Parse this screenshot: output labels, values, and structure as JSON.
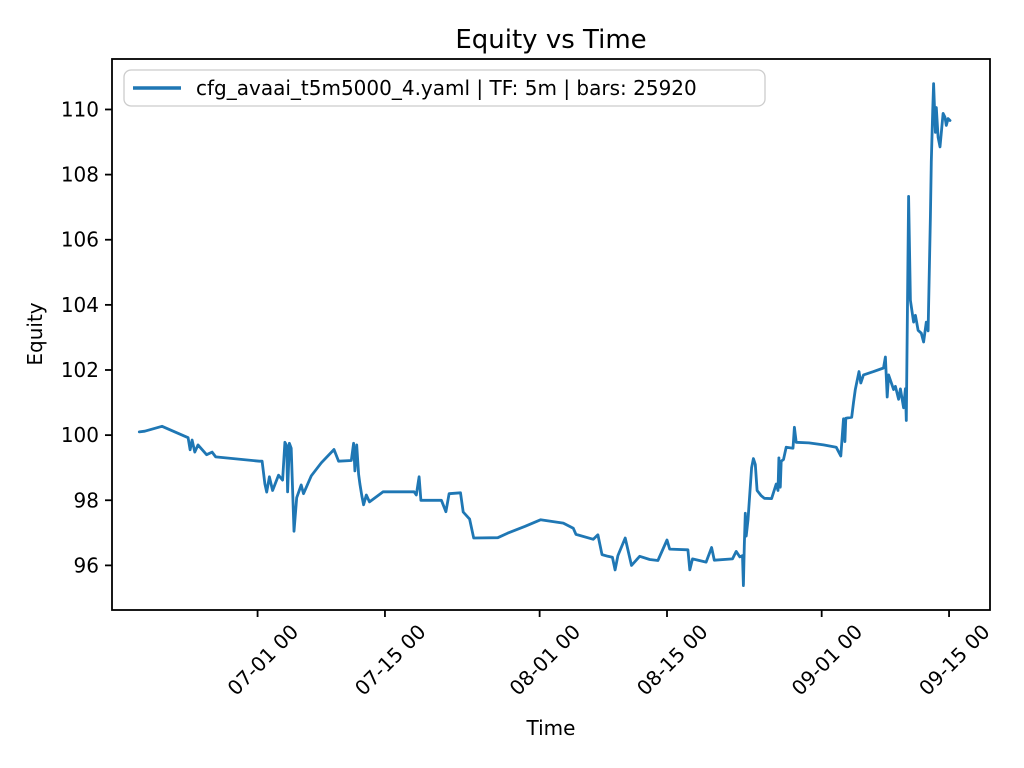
{
  "figure": {
    "title": "Equity vs Time",
    "xlabel": "Time",
    "ylabel": "Equity",
    "legend": {
      "label": "cfg_avaai_t5m5000_4.yaml | TF: 5m | bars: 25920",
      "config_file": "cfg_avaai_t5m5000_4.yaml",
      "timeframe": "5m",
      "bars": "25920",
      "position": "upper left"
    },
    "line_color": "#1f77b4",
    "spine_color": "#000000",
    "legend_border_color": "#cccccc"
  },
  "chart_data": {
    "type": "line",
    "title": "Equity vs Time",
    "xlabel": "Time",
    "ylabel": "Equity",
    "grid": false,
    "legend_position": "upper left",
    "series_name": "cfg_avaai_t5m5000_4.yaml | TF: 5m | bars: 25920",
    "x_encoding": "days after first plotted bar; tick dates are month-day with 00 hour",
    "xlim_days": [
      -3.0,
      93.5
    ],
    "ylim": [
      94.63,
      111.55
    ],
    "yticks": [
      96,
      98,
      100,
      102,
      104,
      106,
      108,
      110
    ],
    "xticks": [
      {
        "day": 13,
        "label": "07-01 00"
      },
      {
        "day": 27,
        "label": "07-15 00"
      },
      {
        "day": 44,
        "label": "08-01 00"
      },
      {
        "day": 58,
        "label": "08-15 00"
      },
      {
        "day": 75,
        "label": "09-01 00"
      },
      {
        "day": 89,
        "label": "09-15 00"
      }
    ],
    "points": [
      [
        0,
        100.1
      ],
      [
        0.6,
        100.12
      ],
      [
        2.5,
        100.27
      ],
      [
        5.36,
        99.92
      ],
      [
        5.58,
        99.55
      ],
      [
        5.8,
        99.85
      ],
      [
        6.1,
        99.48
      ],
      [
        6.45,
        99.7
      ],
      [
        7.4,
        99.4
      ],
      [
        8.0,
        99.48
      ],
      [
        8.4,
        99.33
      ],
      [
        13.2,
        99.2
      ],
      [
        13.5,
        99.2
      ],
      [
        13.8,
        98.5
      ],
      [
        14.0,
        98.25
      ],
      [
        14.3,
        98.72
      ],
      [
        14.65,
        98.3
      ],
      [
        15.3,
        98.77
      ],
      [
        15.75,
        98.62
      ],
      [
        16.0,
        99.78
      ],
      [
        16.2,
        99.68
      ],
      [
        16.3,
        98.26
      ],
      [
        16.5,
        99.75
      ],
      [
        16.7,
        99.6
      ],
      [
        17.0,
        97.05
      ],
      [
        17.3,
        98.08
      ],
      [
        17.8,
        98.47
      ],
      [
        18.05,
        98.2
      ],
      [
        18.9,
        98.75
      ],
      [
        20.0,
        99.15
      ],
      [
        21.4,
        99.56
      ],
      [
        21.9,
        99.2
      ],
      [
        23.3,
        99.22
      ],
      [
        23.55,
        99.75
      ],
      [
        23.7,
        98.9
      ],
      [
        23.9,
        99.7
      ],
      [
        24.1,
        98.8
      ],
      [
        24.25,
        98.5
      ],
      [
        24.45,
        98.14
      ],
      [
        24.65,
        97.86
      ],
      [
        24.95,
        98.16
      ],
      [
        25.3,
        97.95
      ],
      [
        26.8,
        98.26
      ],
      [
        30.2,
        98.26
      ],
      [
        30.45,
        98.16
      ],
      [
        30.75,
        98.72
      ],
      [
        30.95,
        98.0
      ],
      [
        33.2,
        98.0
      ],
      [
        33.7,
        97.65
      ],
      [
        34.05,
        98.2
      ],
      [
        35.3,
        98.23
      ],
      [
        35.6,
        97.64
      ],
      [
        36.3,
        97.42
      ],
      [
        36.75,
        96.84
      ],
      [
        39.4,
        96.85
      ],
      [
        40.5,
        96.99
      ],
      [
        42.4,
        97.2
      ],
      [
        44.1,
        97.4
      ],
      [
        46.6,
        97.3
      ],
      [
        47.7,
        97.14
      ],
      [
        48.0,
        96.95
      ],
      [
        49.9,
        96.8
      ],
      [
        50.4,
        96.94
      ],
      [
        50.85,
        96.33
      ],
      [
        51.5,
        96.28
      ],
      [
        52.0,
        96.25
      ],
      [
        52.3,
        95.86
      ],
      [
        52.6,
        96.3
      ],
      [
        53.4,
        96.84
      ],
      [
        54.1,
        96.0
      ],
      [
        55.0,
        96.28
      ],
      [
        56.1,
        96.18
      ],
      [
        57.0,
        96.15
      ],
      [
        58.0,
        96.78
      ],
      [
        58.3,
        96.5
      ],
      [
        60.3,
        96.48
      ],
      [
        60.5,
        95.86
      ],
      [
        60.8,
        96.2
      ],
      [
        62.3,
        96.1
      ],
      [
        62.9,
        96.55
      ],
      [
        63.2,
        96.16
      ],
      [
        65.2,
        96.2
      ],
      [
        65.6,
        96.43
      ],
      [
        66.0,
        96.26
      ],
      [
        66.3,
        96.3
      ],
      [
        66.4,
        95.38
      ],
      [
        66.5,
        96.6
      ],
      [
        66.6,
        97.6
      ],
      [
        66.7,
        96.9
      ],
      [
        66.9,
        97.4
      ],
      [
        67.3,
        99.0
      ],
      [
        67.5,
        99.28
      ],
      [
        67.7,
        99.1
      ],
      [
        67.9,
        98.3
      ],
      [
        68.35,
        98.14
      ],
      [
        68.7,
        98.06
      ],
      [
        69.5,
        98.05
      ],
      [
        70.0,
        98.5
      ],
      [
        70.2,
        98.3
      ],
      [
        70.3,
        99.3
      ],
      [
        70.45,
        98.4
      ],
      [
        70.55,
        99.2
      ],
      [
        70.8,
        99.25
      ],
      [
        71.1,
        99.63
      ],
      [
        71.85,
        99.6
      ],
      [
        72.0,
        100.24
      ],
      [
        72.2,
        99.78
      ],
      [
        73.6,
        99.76
      ],
      [
        75.2,
        99.7
      ],
      [
        76.6,
        99.63
      ],
      [
        77.1,
        99.36
      ],
      [
        77.4,
        100.5
      ],
      [
        77.55,
        99.8
      ],
      [
        77.65,
        100.52
      ],
      [
        78.3,
        100.55
      ],
      [
        78.5,
        101.0
      ],
      [
        78.7,
        101.4
      ],
      [
        79.1,
        101.95
      ],
      [
        79.3,
        101.6
      ],
      [
        79.6,
        101.85
      ],
      [
        80.7,
        101.95
      ],
      [
        81.8,
        102.06
      ],
      [
        82.0,
        102.4
      ],
      [
        82.2,
        101.17
      ],
      [
        82.35,
        101.85
      ],
      [
        82.9,
        101.4
      ],
      [
        83.1,
        101.5
      ],
      [
        83.45,
        101.1
      ],
      [
        83.65,
        101.42
      ],
      [
        84.0,
        100.84
      ],
      [
        84.2,
        101.43
      ],
      [
        84.3,
        100.45
      ],
      [
        84.55,
        107.33
      ],
      [
        84.75,
        104.14
      ],
      [
        85.1,
        103.47
      ],
      [
        85.3,
        103.68
      ],
      [
        85.6,
        103.22
      ],
      [
        85.95,
        103.13
      ],
      [
        86.2,
        102.86
      ],
      [
        86.5,
        103.47
      ],
      [
        86.7,
        103.2
      ],
      [
        86.95,
        106.7
      ],
      [
        87.05,
        108.4
      ],
      [
        87.2,
        109.94
      ],
      [
        87.3,
        110.79
      ],
      [
        87.5,
        109.3
      ],
      [
        87.6,
        110.06
      ],
      [
        87.8,
        109.15
      ],
      [
        88.0,
        108.85
      ],
      [
        88.35,
        109.88
      ],
      [
        88.55,
        109.76
      ],
      [
        88.7,
        109.51
      ],
      [
        88.9,
        109.72
      ],
      [
        89.1,
        109.66
      ]
    ]
  }
}
